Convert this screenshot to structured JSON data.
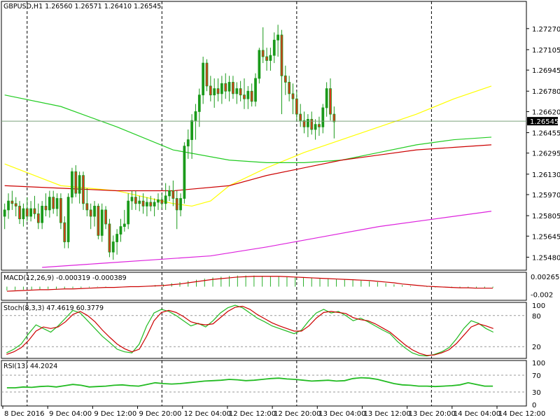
{
  "header": {
    "symbol_line": "GBPUSD,H1  1.26560  1.26571  1.26410  1.26545",
    "macd_label": "MACD(12,26,9) -0.000319 -0.000389",
    "stoch_label": "Stoch(8,3,3) 47.4619 60.3779",
    "rsi_label": "RSI(13) 44.2024"
  },
  "colors": {
    "bull": "#1a9a1a",
    "bear": "#d63a1a",
    "ma_fast": "#ffff00",
    "ma_mid": "#22cc22",
    "ma_red": "#cc0000",
    "ma_slow": "#dd22dd",
    "macd_hist": "#2ab02a",
    "macd_signal": "#cc0000",
    "stoch_main": "#22bb22",
    "stoch_signal": "#cc0000",
    "rsi": "#22bb22"
  },
  "chart_data": [
    {
      "type": "candlestick",
      "title": "GBPUSD,H1",
      "ylim": [
        1.254,
        1.2745
      ],
      "y_ticks": [
        "1.27270",
        "1.27105",
        "1.26945",
        "1.26780",
        "1.26620",
        "1.26545",
        "1.26455",
        "1.26295",
        "1.26130",
        "1.25970",
        "1.25805",
        "1.25645",
        "1.25480"
      ],
      "current_price": "1.26545",
      "current_value": 1.26545,
      "x_ticks": [
        "8 Dec 2016",
        "9 Dec 04:00",
        "9 Dec 12:00",
        "9 Dec 20:00",
        "12 Dec 04:00",
        "12 Dec 12:00",
        "12 Dec 20:00",
        "13 Dec 04:00",
        "13 Dec 12:00",
        "13 Dec 20:00",
        "14 Dec 04:00",
        "14 Dec 12:00"
      ],
      "x_tick_bar_index": [
        0,
        12,
        24,
        36,
        48,
        60,
        72,
        84,
        96,
        108,
        120,
        132
      ],
      "separator_bar_index": [
        6,
        42,
        78,
        114
      ],
      "bars": [
        [
          1.258,
          1.259,
          1.257,
          1.2585
        ],
        [
          1.2585,
          1.2598,
          1.2578,
          1.2592
        ],
        [
          1.2592,
          1.26,
          1.2585,
          1.259
        ],
        [
          1.259,
          1.2595,
          1.258,
          1.2588
        ],
        [
          1.2588,
          1.2592,
          1.2574,
          1.2578
        ],
        [
          1.2578,
          1.259,
          1.2572,
          1.2586
        ],
        [
          1.2586,
          1.2595,
          1.2576,
          1.258
        ],
        [
          1.258,
          1.2592,
          1.2576,
          1.2586
        ],
        [
          1.2586,
          1.2596,
          1.2578,
          1.2582
        ],
        [
          1.2582,
          1.259,
          1.257,
          1.2575
        ],
        [
          1.2575,
          1.2592,
          1.257,
          1.2588
        ],
        [
          1.2588,
          1.2598,
          1.258,
          1.2585
        ],
        [
          1.2585,
          1.26,
          1.2579,
          1.2595
        ],
        [
          1.2595,
          1.26,
          1.2582,
          1.2586
        ],
        [
          1.2586,
          1.2598,
          1.258,
          1.2594
        ],
        [
          1.2594,
          1.2598,
          1.257,
          1.2575
        ],
        [
          1.2575,
          1.258,
          1.2555,
          1.256
        ],
        [
          1.256,
          1.2598,
          1.2555,
          1.2595
        ],
        [
          1.2595,
          1.2618,
          1.259,
          1.2615
        ],
        [
          1.2615,
          1.262,
          1.2595,
          1.2598
        ],
        [
          1.2598,
          1.2615,
          1.259,
          1.2612
        ],
        [
          1.2612,
          1.2615,
          1.2585,
          1.259
        ],
        [
          1.259,
          1.2602,
          1.258,
          1.2585
        ],
        [
          1.2585,
          1.259,
          1.257,
          1.258
        ],
        [
          1.258,
          1.2592,
          1.2572,
          1.2588
        ],
        [
          1.2588,
          1.259,
          1.2562,
          1.2565
        ],
        [
          1.2565,
          1.259,
          1.256,
          1.2585
        ],
        [
          1.2585,
          1.2588,
          1.257,
          1.2574
        ],
        [
          1.2574,
          1.2578,
          1.2548,
          1.2552
        ],
        [
          1.2552,
          1.2565,
          1.2546,
          1.256
        ],
        [
          1.256,
          1.257,
          1.255,
          1.2566
        ],
        [
          1.2566,
          1.2578,
          1.256,
          1.2572
        ],
        [
          1.2572,
          1.2585,
          1.2568,
          1.2574
        ],
        [
          1.2574,
          1.2598,
          1.257,
          1.2592
        ],
        [
          1.2592,
          1.26,
          1.2585,
          1.2595
        ],
        [
          1.2595,
          1.26,
          1.2585,
          1.259
        ],
        [
          1.259,
          1.2596,
          1.2584,
          1.2592
        ],
        [
          1.2592,
          1.2598,
          1.2582,
          1.2588
        ],
        [
          1.2588,
          1.2595,
          1.258,
          1.2591
        ],
        [
          1.2591,
          1.2596,
          1.2584,
          1.2588
        ],
        [
          1.2588,
          1.2594,
          1.258,
          1.2591
        ],
        [
          1.2591,
          1.2598,
          1.2585,
          1.2593
        ],
        [
          1.2593,
          1.2598,
          1.2586,
          1.259
        ],
        [
          1.259,
          1.2606,
          1.2585,
          1.2596
        ],
        [
          1.2596,
          1.2604,
          1.2592,
          1.26
        ],
        [
          1.26,
          1.2608,
          1.2588,
          1.2594
        ],
        [
          1.2594,
          1.26,
          1.257,
          1.2585
        ],
        [
          1.2585,
          1.2598,
          1.258,
          1.2594
        ],
        [
          1.2594,
          1.2638,
          1.259,
          1.2635
        ],
        [
          1.2635,
          1.2648,
          1.2625,
          1.264
        ],
        [
          1.264,
          1.266,
          1.2625,
          1.2655
        ],
        [
          1.2655,
          1.2668,
          1.264,
          1.2662
        ],
        [
          1.2662,
          1.268,
          1.265,
          1.2675
        ],
        [
          1.2675,
          1.2705,
          1.2668,
          1.27
        ],
        [
          1.27,
          1.2703,
          1.2678,
          1.2682
        ],
        [
          1.2682,
          1.269,
          1.267,
          1.2675
        ],
        [
          1.2675,
          1.2688,
          1.2665,
          1.268
        ],
        [
          1.268,
          1.2688,
          1.267,
          1.2676
        ],
        [
          1.2676,
          1.269,
          1.2668,
          1.2684
        ],
        [
          1.2684,
          1.2692,
          1.2672,
          1.2678
        ],
        [
          1.2678,
          1.269,
          1.267,
          1.2685
        ],
        [
          1.2685,
          1.269,
          1.2672,
          1.2676
        ],
        [
          1.2676,
          1.2685,
          1.2668,
          1.268
        ],
        [
          1.268,
          1.2686,
          1.267,
          1.2675
        ],
        [
          1.2675,
          1.2688,
          1.2664,
          1.2672
        ],
        [
          1.2672,
          1.2682,
          1.2664,
          1.2678
        ],
        [
          1.2678,
          1.2684,
          1.2666,
          1.267
        ],
        [
          1.267,
          1.2692,
          1.2666,
          1.2688
        ],
        [
          1.2688,
          1.2712,
          1.2684,
          1.271
        ],
        [
          1.271,
          1.2728,
          1.27,
          1.2705
        ],
        [
          1.2705,
          1.2712,
          1.2694,
          1.2702
        ],
        [
          1.2702,
          1.2712,
          1.2694,
          1.2706
        ],
        [
          1.2706,
          1.2724,
          1.27,
          1.2718
        ],
        [
          1.2718,
          1.273,
          1.2705,
          1.2722
        ],
        [
          1.2722,
          1.2726,
          1.266,
          1.269
        ],
        [
          1.269,
          1.2698,
          1.2675,
          1.2685
        ],
        [
          1.2685,
          1.269,
          1.267,
          1.2676
        ],
        [
          1.2676,
          1.2684,
          1.266,
          1.2672
        ],
        [
          1.2672,
          1.2678,
          1.2655,
          1.266
        ],
        [
          1.266,
          1.2668,
          1.265,
          1.2655
        ],
        [
          1.2655,
          1.2662,
          1.2645,
          1.265
        ],
        [
          1.265,
          1.266,
          1.2642,
          1.2656
        ],
        [
          1.2656,
          1.2662,
          1.2644,
          1.2648
        ],
        [
          1.2648,
          1.2656,
          1.264,
          1.2652
        ],
        [
          1.2652,
          1.2658,
          1.2643,
          1.265
        ],
        [
          1.265,
          1.2668,
          1.2645,
          1.2665
        ],
        [
          1.2665,
          1.2685,
          1.2658,
          1.268
        ],
        [
          1.268,
          1.2688,
          1.2655,
          1.266
        ],
        [
          1.266,
          1.2666,
          1.2641,
          1.2654
        ]
      ]
    },
    {
      "type": "histogram",
      "title": "MACD(12,26,9)",
      "ylim": [
        -0.0032,
        0.0032
      ],
      "y_ticks": [
        "0.002655",
        "0.0",
        "-0.002"
      ],
      "series": [
        {
          "name": "MACD",
          "values": [
            -0.001,
            -0.0009,
            -0.0008,
            -0.0008,
            -0.0007,
            -0.0006,
            -0.0006,
            -0.0005,
            -0.0004,
            -0.0003,
            -0.0002,
            -0.0001,
            -0.0001,
            0.0,
            0.0,
            0.0001,
            0.0001,
            0.0002,
            0.0004,
            0.0006,
            0.0009,
            0.0012,
            0.0015,
            0.0018,
            0.0021,
            0.0024,
            0.0026,
            0.0028,
            0.0029,
            0.0029,
            0.0029,
            0.0028,
            0.0027,
            0.0026,
            0.0025,
            0.0024,
            0.0023,
            0.0022,
            0.0021,
            0.002,
            0.0019,
            0.0018,
            0.0017,
            0.0016,
            0.0014,
            0.0012,
            0.0009,
            0.0006,
            0.0004,
            0.0002,
            0.0,
            -0.0001,
            -0.0002,
            -0.0002,
            -0.0003,
            -0.0003,
            -0.0003,
            -0.0003,
            -0.0003,
            -0.0003
          ]
        },
        {
          "name": "Signal",
          "values": [
            -0.0012,
            -0.0011,
            -0.001,
            -0.0009,
            -0.0008,
            -0.0008,
            -0.0007,
            -0.0006,
            -0.0006,
            -0.0005,
            -0.0004,
            -0.0003,
            -0.0002,
            -0.0002,
            -0.0001,
            0.0,
            0.0,
            0.0001,
            0.0002,
            0.0003,
            0.0005,
            0.0007,
            0.001,
            0.0013,
            0.0016,
            0.0019,
            0.0021,
            0.0023,
            0.0025,
            0.0026,
            0.0027,
            0.0027,
            0.0027,
            0.0027,
            0.0026,
            0.0025,
            0.0024,
            0.0023,
            0.0022,
            0.0021,
            0.002,
            0.0019,
            0.0018,
            0.0017,
            0.0016,
            0.0014,
            0.0012,
            0.001,
            0.0007,
            0.0005,
            0.0003,
            0.0001,
            0.0,
            -0.0001,
            -0.0002,
            -0.0003,
            -0.0003,
            -0.0004,
            -0.0004,
            -0.0004
          ]
        }
      ]
    },
    {
      "type": "line",
      "title": "Stoch(8,3,3)",
      "ylim": [
        0,
        100
      ],
      "y_ticks": [
        "100",
        "80",
        "20",
        "0"
      ],
      "levels": [
        80,
        20
      ],
      "series": [
        {
          "name": "Main",
          "values": [
            8,
            15,
            25,
            45,
            62,
            55,
            48,
            60,
            75,
            90,
            85,
            70,
            55,
            40,
            28,
            15,
            10,
            8,
            25,
            60,
            85,
            92,
            88,
            80,
            70,
            60,
            65,
            58,
            70,
            85,
            95,
            100,
            95,
            85,
            75,
            68,
            60,
            55,
            50,
            45,
            52,
            70,
            85,
            92,
            85,
            88,
            80,
            70,
            75,
            68,
            60,
            52,
            45,
            30,
            18,
            8,
            3,
            2,
            5,
            10,
            18,
            35,
            55,
            70,
            65,
            55,
            48
          ]
        },
        {
          "name": "Signal",
          "values": [
            5,
            10,
            18,
            32,
            50,
            58,
            55,
            58,
            68,
            82,
            88,
            80,
            68,
            52,
            38,
            25,
            16,
            10,
            15,
            40,
            70,
            86,
            90,
            86,
            78,
            68,
            64,
            62,
            64,
            76,
            88,
            96,
            98,
            92,
            82,
            74,
            66,
            60,
            55,
            50,
            50,
            60,
            75,
            86,
            88,
            86,
            84,
            76,
            72,
            70,
            64,
            56,
            48,
            36,
            24,
            14,
            7,
            3,
            4,
            8,
            14,
            26,
            42,
            58,
            64,
            60,
            55
          ]
        }
      ]
    },
    {
      "type": "line",
      "title": "RSI(13)",
      "ylim": [
        0,
        100
      ],
      "y_ticks": [
        "100",
        "70",
        "30",
        "0"
      ],
      "levels": [
        70,
        30
      ],
      "series": [
        {
          "name": "RSI",
          "values": [
            40,
            40,
            42,
            41,
            43,
            44,
            42,
            45,
            48,
            46,
            42,
            43,
            44,
            46,
            47,
            45,
            44,
            48,
            52,
            50,
            49,
            50,
            52,
            54,
            56,
            57,
            58,
            60,
            59,
            57,
            58,
            60,
            62,
            63,
            61,
            60,
            58,
            56,
            57,
            58,
            56,
            57,
            62,
            64,
            63,
            60,
            55,
            50,
            47,
            46,
            44,
            44,
            43,
            44,
            45,
            47,
            52,
            48,
            44,
            44
          ]
        }
      ]
    }
  ],
  "moving_averages": [
    {
      "name": "ma-fast",
      "color": "#ffff00",
      "x": [
        0,
        15,
        30,
        45,
        50,
        55,
        60,
        70,
        80,
        90,
        100,
        110,
        120,
        130
      ],
      "y": [
        1.2621,
        1.2604,
        1.26,
        1.259,
        1.2588,
        1.2592,
        1.2604,
        1.2618,
        1.263,
        1.264,
        1.265,
        1.266,
        1.2672,
        1.2682
      ]
    },
    {
      "name": "ma-mid",
      "color": "#22cc22",
      "x": [
        0,
        15,
        30,
        45,
        60,
        70,
        80,
        90,
        100,
        110,
        120,
        130
      ],
      "y": [
        1.2675,
        1.2666,
        1.265,
        1.2632,
        1.2624,
        1.2622,
        1.2622,
        1.2624,
        1.263,
        1.2636,
        1.264,
        1.2642
      ]
    },
    {
      "name": "ma-red",
      "color": "#cc0000",
      "x": [
        0,
        15,
        30,
        45,
        60,
        70,
        80,
        90,
        100,
        110,
        120,
        130
      ],
      "y": [
        1.2604,
        1.2602,
        1.26,
        1.26,
        1.2604,
        1.2612,
        1.2618,
        1.2624,
        1.2628,
        1.2632,
        1.2634,
        1.2636
      ]
    },
    {
      "name": "ma-slow",
      "color": "#dd22dd",
      "x": [
        10,
        25,
        40,
        55,
        70,
        85,
        100,
        115,
        130
      ],
      "y": [
        1.254,
        1.2543,
        1.2546,
        1.2549,
        1.2556,
        1.2564,
        1.2572,
        1.2578,
        1.2584
      ]
    }
  ]
}
